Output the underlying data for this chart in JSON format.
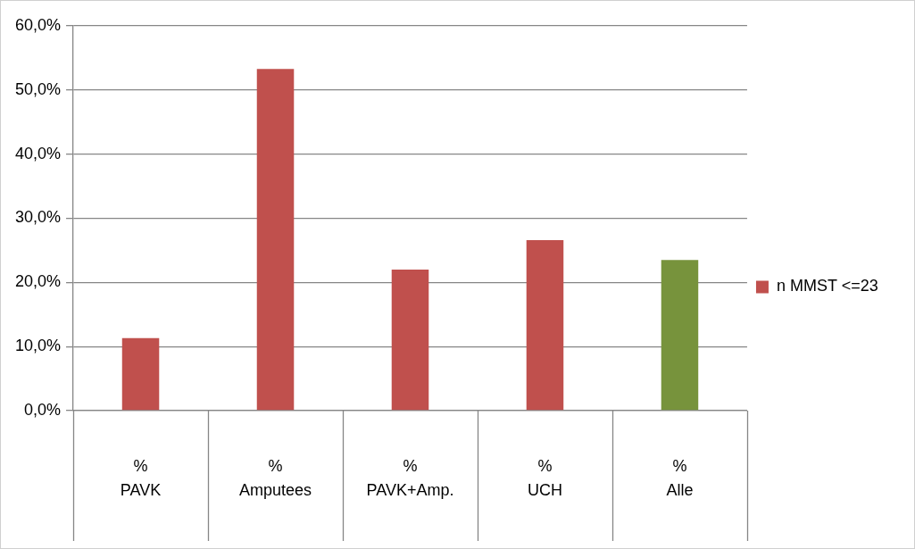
{
  "chart_data": {
    "type": "bar",
    "categories": [
      "%\nPAVK",
      "%\nAmputees",
      "%\nPAVK+Amp.",
      "%\nUCH",
      "%\nAlle"
    ],
    "series": [
      {
        "name": "n MMST <=23",
        "color": "#c0504d",
        "colors": [
          "#c0504d",
          "#c0504d",
          "#c0504d",
          "#c0504d",
          "#77933c"
        ],
        "values": [
          11.3,
          53.3,
          22.0,
          26.6,
          23.5
        ]
      }
    ],
    "ylim": [
      0,
      60
    ],
    "yticks": [
      {
        "value": 0,
        "label": "0,0%"
      },
      {
        "value": 10,
        "label": "10,0%"
      },
      {
        "value": 20,
        "label": "20,0%"
      },
      {
        "value": 30,
        "label": "30,0%"
      },
      {
        "value": 40,
        "label": "40,0%"
      },
      {
        "value": 50,
        "label": "50,0%"
      },
      {
        "value": 60,
        "label": "60,0%"
      }
    ],
    "grid": "y",
    "legend": "right"
  }
}
